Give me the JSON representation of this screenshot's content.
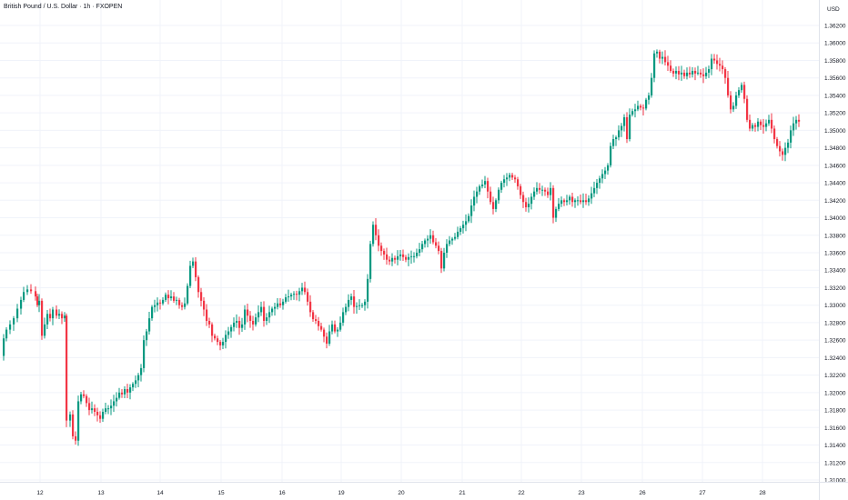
{
  "chart_data": {
    "type": "candlestick",
    "title": "British Pound / U.S. Dollar · 1h · FXOPEN",
    "currency_label": "USD",
    "ylim": [
      1.31,
      1.363
    ],
    "y_ticks": [
      "1.31000",
      "1.31200",
      "1.31400",
      "1.31600",
      "1.31800",
      "1.32000",
      "1.32200",
      "1.32400",
      "1.32600",
      "1.32800",
      "1.33000",
      "1.33200",
      "1.33400",
      "1.33600",
      "1.33800",
      "1.34000",
      "1.34200",
      "1.34400",
      "1.34600",
      "1.34800",
      "1.35000",
      "1.35200",
      "1.35400",
      "1.35600",
      "1.35800",
      "1.36000",
      "1.36200"
    ],
    "x_ticks": [
      "12",
      "13",
      "14",
      "15",
      "16",
      "19",
      "20",
      "21",
      "22",
      "23",
      "26",
      "27",
      "28"
    ],
    "grid": true,
    "colors": {
      "up": "#089981",
      "down": "#f23645",
      "grid": "#f0f3fa",
      "axis_text": "#131722"
    },
    "close_path": [
      [
        0,
        1.3242
      ],
      [
        3,
        1.3262
      ],
      [
        6,
        1.3272
      ],
      [
        10,
        1.3278
      ],
      [
        14,
        1.3285
      ],
      [
        18,
        1.3296
      ],
      [
        22,
        1.3306
      ],
      [
        25,
        1.3315
      ],
      [
        29,
        1.3318
      ],
      [
        33,
        1.3316
      ],
      [
        38,
        1.331
      ],
      [
        40,
        1.33
      ],
      [
        42,
        1.3305
      ],
      [
        45,
        1.3265
      ],
      [
        48,
        1.3278
      ],
      [
        51,
        1.329
      ],
      [
        54,
        1.3285
      ],
      [
        57,
        1.3295
      ],
      [
        61,
        1.3288
      ],
      [
        64,
        1.329
      ],
      [
        67,
        1.3285
      ],
      [
        70,
        1.3288
      ],
      [
        72,
        1.3168
      ],
      [
        76,
        1.3175
      ],
      [
        79,
        1.315
      ],
      [
        82,
        1.3145
      ],
      [
        85,
        1.319
      ],
      [
        88,
        1.3198
      ],
      [
        91,
        1.3196
      ],
      [
        94,
        1.3188
      ],
      [
        97,
        1.318
      ],
      [
        100,
        1.3182
      ],
      [
        103,
        1.3178
      ],
      [
        106,
        1.3174
      ],
      [
        109,
        1.317
      ],
      [
        112,
        1.3178
      ],
      [
        115,
        1.3182
      ],
      [
        118,
        1.3182
      ],
      [
        121,
        1.3185
      ],
      [
        124,
        1.319
      ],
      [
        127,
        1.3194
      ],
      [
        130,
        1.32
      ],
      [
        133,
        1.3198
      ],
      [
        136,
        1.3204
      ],
      [
        139,
        1.32
      ],
      [
        142,
        1.3206
      ],
      [
        145,
        1.321
      ],
      [
        148,
        1.3214
      ],
      [
        151,
        1.322
      ],
      [
        154,
        1.3228
      ],
      [
        157,
        1.326
      ],
      [
        160,
        1.327
      ],
      [
        163,
        1.3285
      ],
      [
        166,
        1.3298
      ],
      [
        169,
        1.33
      ],
      [
        172,
        1.3303
      ],
      [
        175,
        1.3302
      ],
      [
        178,
        1.3306
      ],
      [
        181,
        1.3312
      ],
      [
        184,
        1.3308
      ],
      [
        187,
        1.331
      ],
      [
        190,
        1.3305
      ],
      [
        193,
        1.3306
      ],
      [
        196,
        1.33
      ],
      [
        199,
        1.3298
      ],
      [
        202,
        1.3302
      ],
      [
        205,
        1.3322
      ],
      [
        208,
        1.3345
      ],
      [
        211,
        1.335
      ],
      [
        214,
        1.3332
      ],
      [
        217,
        1.3315
      ],
      [
        220,
        1.3305
      ],
      [
        223,
        1.3295
      ],
      [
        226,
        1.3282
      ],
      [
        229,
        1.3278
      ],
      [
        232,
        1.3265
      ],
      [
        235,
        1.3262
      ],
      [
        238,
        1.3258
      ],
      [
        241,
        1.3254
      ],
      [
        244,
        1.3258
      ],
      [
        247,
        1.3266
      ],
      [
        250,
        1.327
      ],
      [
        253,
        1.3275
      ],
      [
        256,
        1.328
      ],
      [
        259,
        1.3282
      ],
      [
        262,
        1.3274
      ],
      [
        265,
        1.3278
      ],
      [
        268,
        1.3295
      ],
      [
        271,
        1.3288
      ],
      [
        274,
        1.3282
      ],
      [
        277,
        1.3278
      ],
      [
        280,
        1.3286
      ],
      [
        283,
        1.3292
      ],
      [
        286,
        1.3298
      ],
      [
        289,
        1.3282
      ],
      [
        292,
        1.3286
      ],
      [
        295,
        1.3292
      ],
      [
        298,
        1.3296
      ],
      [
        301,
        1.3298
      ],
      [
        304,
        1.3302
      ],
      [
        307,
        1.33
      ],
      [
        310,
        1.3304
      ],
      [
        313,
        1.3309
      ],
      [
        316,
        1.331
      ],
      [
        319,
        1.3312
      ],
      [
        322,
        1.3313
      ],
      [
        325,
        1.3312
      ],
      [
        328,
        1.3316
      ],
      [
        331,
        1.332
      ],
      [
        334,
        1.3315
      ],
      [
        337,
        1.3304
      ],
      [
        340,
        1.3292
      ],
      [
        343,
        1.3284
      ],
      [
        346,
        1.3282
      ],
      [
        349,
        1.3276
      ],
      [
        352,
        1.3272
      ],
      [
        355,
        1.3264
      ],
      [
        358,
        1.3256
      ],
      [
        361,
        1.327
      ],
      [
        364,
        1.3278
      ],
      [
        367,
        1.327
      ],
      [
        370,
        1.3272
      ],
      [
        373,
        1.328
      ],
      [
        376,
        1.3292
      ],
      [
        379,
        1.3298
      ],
      [
        382,
        1.3306
      ],
      [
        385,
        1.331
      ],
      [
        388,
        1.3298
      ],
      [
        391,
        1.3299
      ],
      [
        394,
        1.33
      ],
      [
        397,
        1.33
      ],
      [
        400,
        1.3304
      ],
      [
        403,
        1.333
      ],
      [
        406,
        1.337
      ],
      [
        409,
        1.3392
      ],
      [
        412,
        1.338
      ],
      [
        415,
        1.3368
      ],
      [
        418,
        1.3362
      ],
      [
        421,
        1.3358
      ],
      [
        424,
        1.3352
      ],
      [
        427,
        1.335
      ],
      [
        430,
        1.3354
      ],
      [
        433,
        1.3352
      ],
      [
        436,
        1.3356
      ],
      [
        439,
        1.3358
      ],
      [
        442,
        1.3355
      ],
      [
        445,
        1.3352
      ],
      [
        448,
        1.3355
      ],
      [
        451,
        1.3356
      ],
      [
        454,
        1.3356
      ],
      [
        457,
        1.336
      ],
      [
        460,
        1.3364
      ],
      [
        463,
        1.337
      ],
      [
        466,
        1.3374
      ],
      [
        469,
        1.3376
      ],
      [
        472,
        1.338
      ],
      [
        475,
        1.3372
      ],
      [
        478,
        1.3368
      ],
      [
        481,
        1.3362
      ],
      [
        484,
        1.3342
      ],
      [
        487,
        1.336
      ],
      [
        490,
        1.337
      ],
      [
        493,
        1.3374
      ],
      [
        496,
        1.3376
      ],
      [
        499,
        1.3378
      ],
      [
        502,
        1.3384
      ],
      [
        505,
        1.3388
      ],
      [
        508,
        1.3392
      ],
      [
        511,
        1.3396
      ],
      [
        514,
        1.3402
      ],
      [
        517,
        1.3414
      ],
      [
        520,
        1.3424
      ],
      [
        523,
        1.343
      ],
      [
        526,
        1.3436
      ],
      [
        529,
        1.3438
      ],
      [
        532,
        1.3442
      ],
      [
        535,
        1.343
      ],
      [
        538,
        1.3418
      ],
      [
        541,
        1.341
      ],
      [
        544,
        1.342
      ],
      [
        547,
        1.3432
      ],
      [
        550,
        1.344
      ],
      [
        553,
        1.3444
      ],
      [
        556,
        1.3446
      ],
      [
        559,
        1.3449
      ],
      [
        562,
        1.3446
      ],
      [
        565,
        1.3444
      ],
      [
        568,
        1.3436
      ],
      [
        571,
        1.3426
      ],
      [
        574,
        1.3418
      ],
      [
        577,
        1.3412
      ],
      [
        580,
        1.3416
      ],
      [
        583,
        1.3424
      ],
      [
        586,
        1.343
      ],
      [
        589,
        1.3434
      ],
      [
        592,
        1.3432
      ],
      [
        595,
        1.3432
      ],
      [
        598,
        1.343
      ],
      [
        601,
        1.3426
      ],
      [
        604,
        1.3434
      ],
      [
        607,
        1.34
      ],
      [
        610,
        1.341
      ],
      [
        613,
        1.3416
      ],
      [
        616,
        1.342
      ],
      [
        619,
        1.3418
      ],
      [
        622,
        1.342
      ],
      [
        625,
        1.3424
      ],
      [
        628,
        1.3418
      ],
      [
        631,
        1.342
      ],
      [
        634,
        1.342
      ],
      [
        637,
        1.3418
      ],
      [
        640,
        1.342
      ],
      [
        643,
        1.3418
      ],
      [
        646,
        1.3422
      ],
      [
        649,
        1.3428
      ],
      [
        652,
        1.3434
      ],
      [
        655,
        1.344
      ],
      [
        658,
        1.3445
      ],
      [
        661,
        1.345
      ],
      [
        664,
        1.3454
      ],
      [
        667,
        1.346
      ],
      [
        670,
        1.3482
      ],
      [
        673,
        1.349
      ],
      [
        676,
        1.3492
      ],
      [
        679,
        1.35
      ],
      [
        682,
        1.3505
      ],
      [
        685,
        1.3515
      ],
      [
        688,
        1.349
      ],
      [
        691,
        1.3518
      ],
      [
        694,
        1.3522
      ],
      [
        697,
        1.3524
      ],
      [
        700,
        1.3528
      ],
      [
        703,
        1.3526
      ],
      [
        706,
        1.3525
      ],
      [
        709,
        1.3535
      ],
      [
        712,
        1.354
      ],
      [
        715,
        1.356
      ],
      [
        718,
        1.3588
      ],
      [
        721,
        1.359
      ],
      [
        724,
        1.3582
      ],
      [
        727,
        1.3584
      ],
      [
        730,
        1.3578
      ],
      [
        733,
        1.3574
      ],
      [
        736,
        1.3568
      ],
      [
        739,
        1.3565
      ],
      [
        742,
        1.3568
      ],
      [
        745,
        1.3564
      ],
      [
        748,
        1.3566
      ],
      [
        751,
        1.3562
      ],
      [
        754,
        1.3566
      ],
      [
        757,
        1.3564
      ],
      [
        760,
        1.3568
      ],
      [
        763,
        1.3565
      ],
      [
        766,
        1.3566
      ],
      [
        769,
        1.3564
      ],
      [
        772,
        1.3562
      ],
      [
        775,
        1.3566
      ],
      [
        778,
        1.357
      ],
      [
        781,
        1.3582
      ],
      [
        784,
        1.358
      ],
      [
        787,
        1.3576
      ],
      [
        790,
        1.3574
      ],
      [
        793,
        1.357
      ],
      [
        796,
        1.356
      ],
      [
        799,
        1.354
      ],
      [
        802,
        1.3524
      ],
      [
        805,
        1.3528
      ],
      [
        808,
        1.354
      ],
      [
        811,
        1.3546
      ],
      [
        814,
        1.3552
      ],
      [
        817,
        1.3536
      ],
      [
        820,
        1.3512
      ],
      [
        823,
        1.3502
      ],
      [
        826,
        1.3506
      ],
      [
        829,
        1.3504
      ],
      [
        832,
        1.351
      ],
      [
        835,
        1.3506
      ],
      [
        838,
        1.3504
      ],
      [
        841,
        1.3508
      ],
      [
        844,
        1.3512
      ],
      [
        847,
        1.3502
      ],
      [
        850,
        1.349
      ],
      [
        853,
        1.3482
      ],
      [
        856,
        1.3476
      ],
      [
        859,
        1.3472
      ],
      [
        862,
        1.348
      ],
      [
        865,
        1.3486
      ],
      [
        868,
        1.35
      ],
      [
        871,
        1.3508
      ],
      [
        874,
        1.3512
      ],
      [
        877,
        1.351
      ]
    ]
  }
}
